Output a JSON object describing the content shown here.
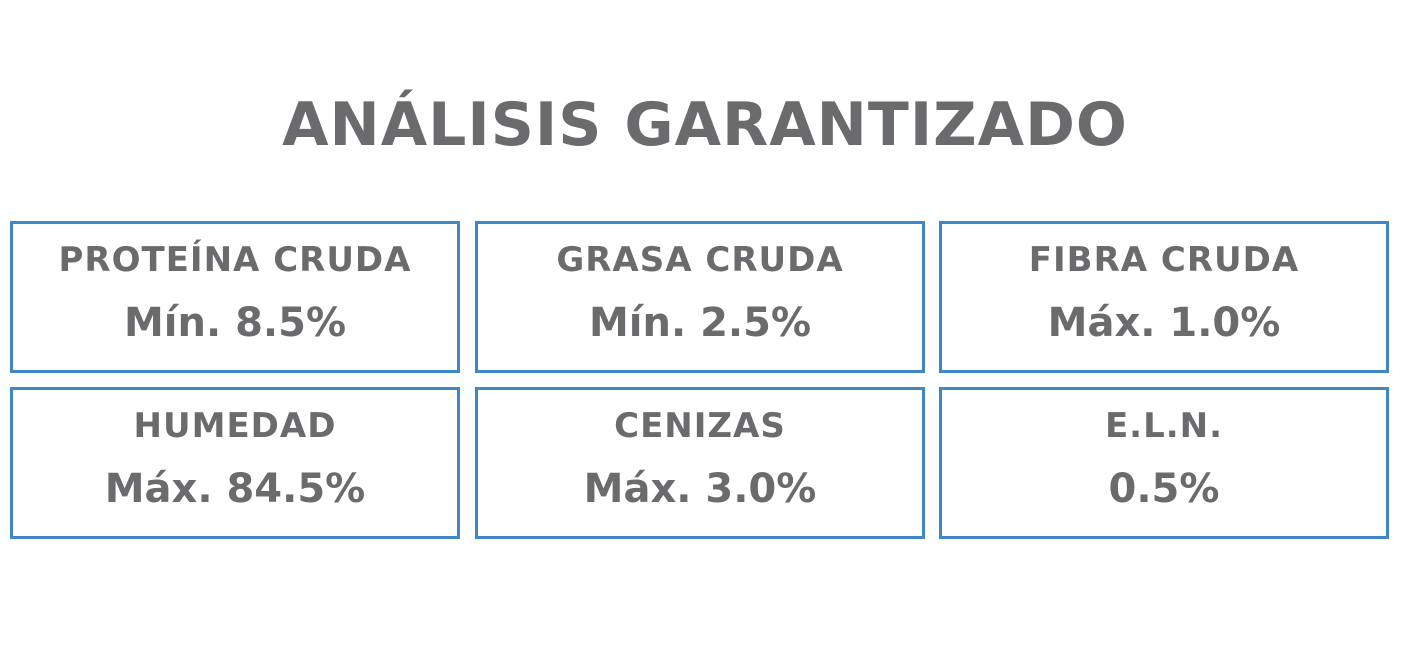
{
  "title": "ANÁLISIS GARANTIZADO",
  "cells": [
    {
      "label": "PROTEÍNA CRUDA",
      "value": "Mín. 8.5%"
    },
    {
      "label": "GRASA CRUDA",
      "value": "Mín. 2.5%"
    },
    {
      "label": "FIBRA CRUDA",
      "value": "Máx. 1.0%"
    },
    {
      "label": "HUMEDAD",
      "value": "Máx. 84.5%"
    },
    {
      "label": "CENIZAS",
      "value": "Máx. 3.0%"
    },
    {
      "label": "E.L.N.",
      "value": "0.5%"
    }
  ]
}
